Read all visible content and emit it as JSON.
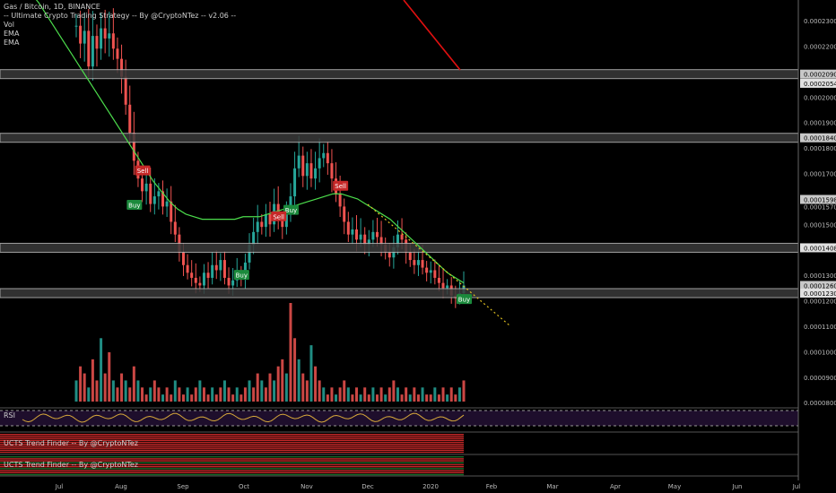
{
  "legend": {
    "symbol": "Gas / Bitcoin, 1D, BINANCE",
    "strategy": "-- Ultimate Crypto Trading Strategy -- By @CryptoNTez -- v2.06 --",
    "vol": "Vol",
    "ema1": "EMA",
    "ema2": "EMA"
  },
  "panels": {
    "rsi_label": "RSI",
    "rsi_level": "50.00",
    "trend1_label": "UCTS Trend Finder -- By @CryptoNTez",
    "trend2_label": "UCTS Trend Finder -- By @CryptoNTez"
  },
  "chart_data": {
    "type": "candlestick",
    "x_ticks": [
      "Jul",
      "Aug",
      "Sep",
      "Oct",
      "Nov",
      "Dec",
      "2020",
      "Feb",
      "Mar",
      "Apr",
      "May",
      "Jun",
      "Jul"
    ],
    "y_ticks": [
      "0.00023000",
      "0.00022000",
      "0.00020000",
      "0.00019000",
      "0.00018000",
      "0.00017000",
      "0.00015700",
      "0.00015000",
      "0.00013000",
      "0.00012000",
      "0.00011000",
      "0.00010000",
      "0.00009000",
      "0.00008000"
    ],
    "ylim": [
      7.9e-05,
      0.000236
    ],
    "levels": [
      {
        "label": "0.00020900",
        "value": 0.000209,
        "bg": "#c8c8c8"
      },
      {
        "label": "0.00020540",
        "value": 0.0002054,
        "bg": "#e0e0e0"
      },
      {
        "label": "0.00018400",
        "value": 0.000184,
        "bg": "#c8c8c8"
      },
      {
        "label": "0.00015980",
        "value": 0.0001598,
        "bg": "#c8c8c8"
      },
      {
        "label": "0.00014080",
        "value": 0.0001408,
        "bg": "#e0e0e0"
      },
      {
        "label": "0.00012600",
        "value": 0.000126,
        "bg": "#c8c8c8"
      },
      {
        "label": "0.00012300",
        "value": 0.000123,
        "bg": "#e0e0e0"
      }
    ],
    "signals": [
      {
        "label": "Sell",
        "kind": "sell",
        "x_index": 16,
        "value": 0.000171
      },
      {
        "label": "Buy",
        "kind": "buy",
        "x_index": 14,
        "value": 0.0001575
      },
      {
        "label": "Buy",
        "kind": "buy",
        "x_index": 40,
        "value": 0.00013
      },
      {
        "label": "Buy",
        "kind": "buy",
        "x_index": 52,
        "value": 0.0001555
      },
      {
        "label": "Sell",
        "kind": "sell",
        "x_index": 49,
        "value": 0.000153
      },
      {
        "label": "Sell",
        "kind": "sell",
        "x_index": 64,
        "value": 0.000165
      },
      {
        "label": "Buy",
        "kind": "buy",
        "x_index": 94,
        "value": 0.0001205
      }
    ],
    "closes": [
      0.000228,
      0.000221,
      0.000226,
      0.000212,
      0.000224,
      0.000219,
      0.000227,
      0.000223,
      0.000225,
      0.000219,
      0.000215,
      0.000208,
      0.000197,
      0.000186,
      0.000175,
      0.000168,
      0.000163,
      0.000166,
      0.000158,
      0.000161,
      0.000163,
      0.000157,
      0.000159,
      0.000151,
      0.000146,
      0.000139,
      0.000134,
      0.000131,
      0.000129,
      0.000127,
      0.000126,
      0.000131,
      0.000129,
      0.000134,
      0.000132,
      0.000136,
      0.000129,
      0.000126,
      0.000128,
      0.000131,
      0.000129,
      0.000135,
      0.000142,
      0.000147,
      0.000151,
      0.000149,
      0.000154,
      0.00015,
      0.000158,
      0.000152,
      0.000149,
      0.000155,
      0.000161,
      0.000172,
      0.000177,
      0.000169,
      0.000174,
      0.000168,
      0.000172,
      0.000176,
      0.000178,
      0.000174,
      0.000168,
      0.000162,
      0.000157,
      0.000151,
      0.000146,
      0.000148,
      0.000144,
      0.000146,
      0.000142,
      0.000144,
      0.000147,
      0.000145,
      0.000142,
      0.000139,
      0.000137,
      0.000141,
      0.000146,
      0.000144,
      0.000139,
      0.000136,
      0.000134,
      0.000136,
      0.000133,
      0.000131,
      0.000132,
      0.000129,
      0.000127,
      0.000125,
      0.000126,
      0.000122,
      0.000121,
      0.000123,
      0.000126
    ],
    "ema_slow": [
      0.000245,
      0.000241,
      0.000237,
      0.000232,
      0.000227,
      0.000222,
      0.000217,
      0.000212,
      0.000207,
      0.000202,
      0.000197,
      0.000192,
      0.000187,
      0.000182,
      0.000177,
      0.000172,
      0.000167,
      0.000163,
      0.000159,
      0.000156,
      0.000154,
      0.000153,
      0.000152,
      0.000152,
      0.000152,
      0.000152,
      0.000152,
      0.000153,
      0.000153,
      0.000153,
      0.000154,
      0.000155,
      0.000156,
      0.000157,
      0.000158,
      0.000159,
      0.00016,
      0.000161,
      0.000162,
      0.000162,
      0.000161,
      0.00016,
      0.000158,
      0.000156,
      0.000154,
      0.000152,
      0.000149,
      0.000146,
      0.000143,
      0.00014,
      0.000137,
      0.000134,
      0.000131,
      0.000129,
      0.000127
    ],
    "volumes": [
      3,
      5,
      4,
      2,
      6,
      3,
      9,
      4,
      7,
      3,
      2,
      4,
      3,
      2,
      5,
      3,
      2,
      1,
      2,
      3,
      2,
      1,
      2,
      1,
      3,
      2,
      1,
      2,
      1,
      2,
      3,
      2,
      1,
      2,
      1,
      2,
      3,
      2,
      1,
      2,
      1,
      2,
      3,
      2,
      4,
      3,
      2,
      4,
      3,
      5,
      6,
      4,
      14,
      9,
      6,
      4,
      3,
      8,
      5,
      3,
      2,
      1,
      2,
      1,
      2,
      3,
      2,
      1,
      2,
      1,
      2,
      1,
      2,
      1,
      2,
      1,
      2,
      3,
      2,
      1,
      2,
      1,
      2,
      1,
      2,
      1,
      1,
      2,
      1,
      2,
      1,
      2,
      1,
      2,
      3
    ]
  }
}
